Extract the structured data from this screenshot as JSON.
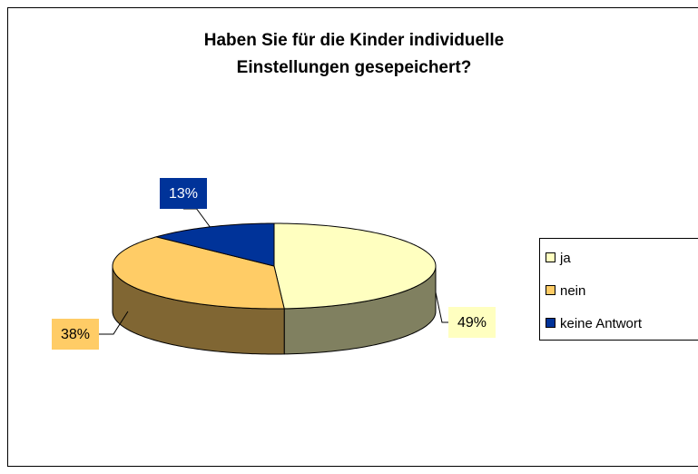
{
  "chart_data": {
    "type": "pie3d",
    "title": [
      "Haben Sie für die Kinder individuelle",
      "Einstellungen gesepeichert?"
    ],
    "categories": [
      "ja",
      "nein",
      "keine Antwort"
    ],
    "values": [
      49,
      38,
      13
    ],
    "value_labels": [
      "49%",
      "38%",
      "13%"
    ],
    "colors": [
      "#FFFFC0",
      "#FFCC66",
      "#003399"
    ],
    "legend": "right"
  }
}
